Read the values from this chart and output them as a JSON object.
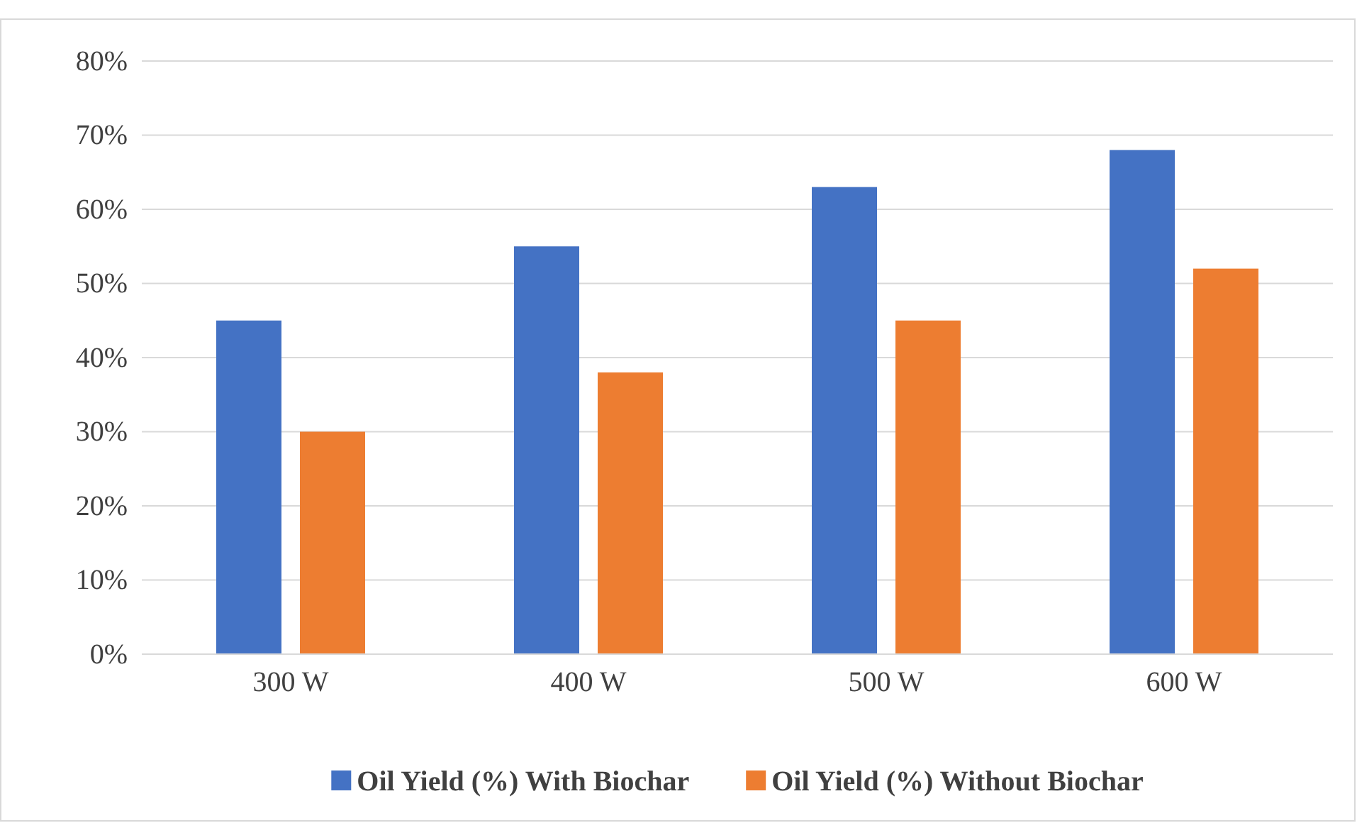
{
  "chart_data": {
    "type": "bar",
    "categories": [
      "300 W",
      "400 W",
      "500 W",
      "600 W"
    ],
    "series": [
      {
        "name": "Oil Yield (%) With Biochar",
        "color": "#4472c4",
        "values": [
          45,
          55,
          63,
          68
        ]
      },
      {
        "name": "Oil Yield (%) Without Biochar",
        "color": "#ed7d31",
        "values": [
          30,
          38,
          45,
          52
        ]
      }
    ],
    "ylim": [
      0,
      80
    ],
    "yticks": [
      {
        "value": 0,
        "label": "0%"
      },
      {
        "value": 10,
        "label": "10%"
      },
      {
        "value": 20,
        "label": "20%"
      },
      {
        "value": 30,
        "label": "30%"
      },
      {
        "value": 40,
        "label": "40%"
      },
      {
        "value": 50,
        "label": "50%"
      },
      {
        "value": 60,
        "label": "60%"
      },
      {
        "value": 70,
        "label": "70%"
      },
      {
        "value": 80,
        "label": "80%"
      }
    ],
    "grid": "y",
    "legend": "bottom"
  }
}
